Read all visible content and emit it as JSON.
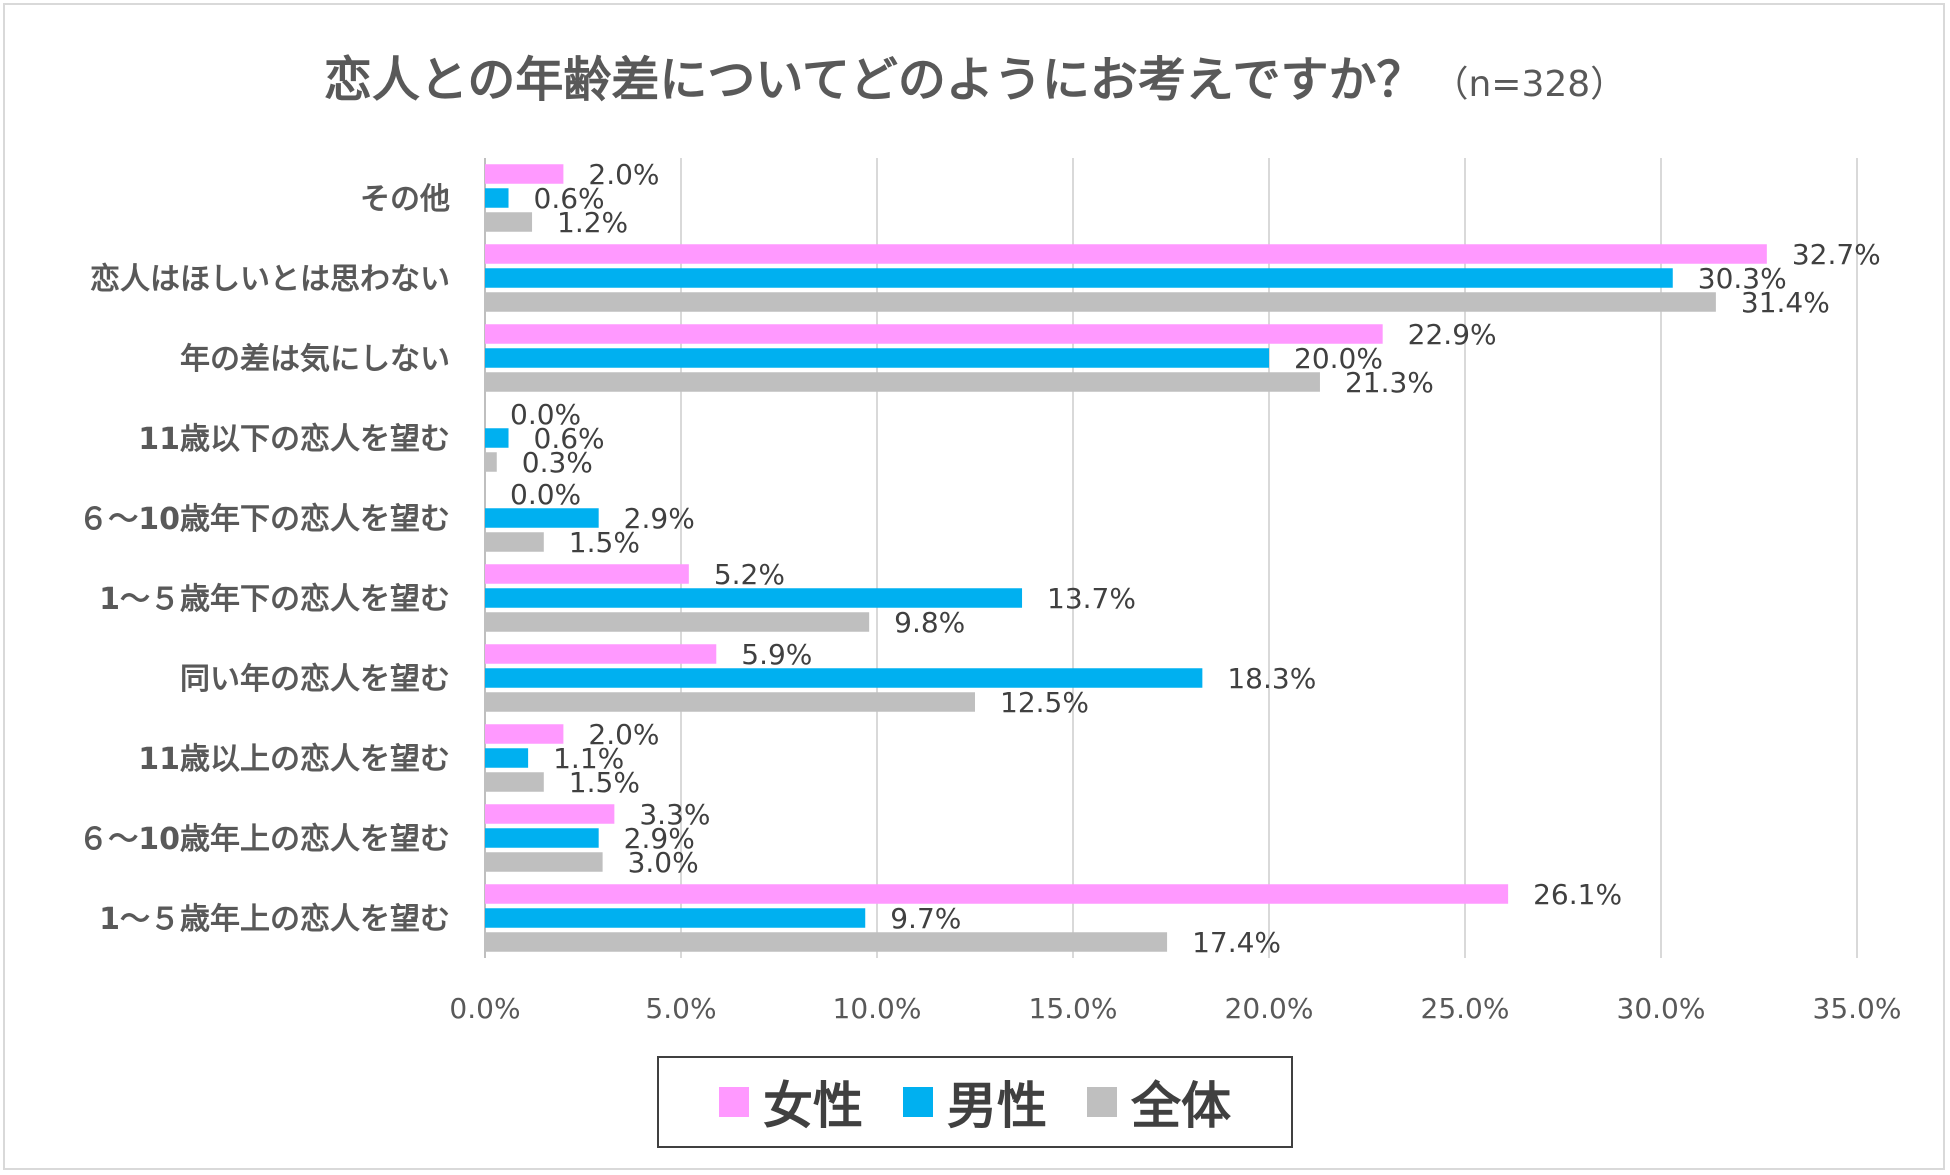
{
  "chart_data": {
    "type": "bar",
    "orientation": "horizontal",
    "title": "恋人との年齢差についてどのようにお考えですか？",
    "subtitle": "（n=328）",
    "categories": [
      "その他",
      "恋人はほしいとは思わない",
      "年の差は気にしない",
      "11歳以下の恋人を望む",
      "６～10歳年下の恋人を望む",
      "1～５歳年下の恋人を望む",
      "同い年の恋人を望む",
      "11歳以上の恋人を望む",
      "６～10歳年上の恋人を望む",
      "1～５歳年上の恋人を望む"
    ],
    "series": [
      {
        "name": "女性",
        "color": "#ff99ff",
        "values": [
          2.0,
          32.7,
          22.9,
          0.0,
          0.0,
          5.2,
          5.9,
          2.0,
          3.3,
          26.1
        ]
      },
      {
        "name": "男性",
        "color": "#00b0f0",
        "values": [
          0.6,
          30.3,
          20.0,
          0.6,
          2.9,
          13.7,
          18.3,
          1.1,
          2.9,
          9.7
        ]
      },
      {
        "name": "全体",
        "color": "#bfbfbf",
        "values": [
          1.2,
          31.4,
          21.3,
          0.3,
          1.5,
          9.8,
          12.5,
          1.5,
          3.0,
          17.4
        ]
      }
    ],
    "xlim": [
      0,
      35
    ],
    "xticks": [
      0,
      5,
      10,
      15,
      20,
      25,
      30,
      35
    ],
    "tick_format": "percent_1dp",
    "grid": true,
    "legend_position": "bottom"
  }
}
